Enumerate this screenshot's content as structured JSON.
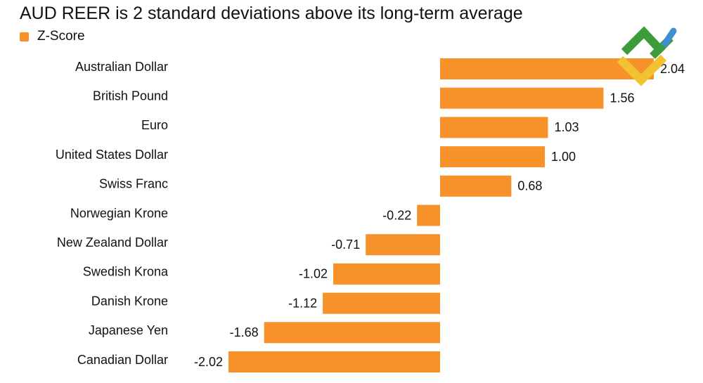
{
  "chart_data": {
    "type": "bar",
    "orientation": "horizontal",
    "title": "AUD REER is 2 standard deviations above its long-term average",
    "xlabel": "",
    "ylabel": "",
    "grid": false,
    "legend_position": "top-left",
    "categories": [
      "Australian Dollar",
      "British Pound",
      "Euro",
      "United States Dollar",
      "Swiss Franc",
      "Norwegian Krone",
      "New Zealand Dollar",
      "Swedish Krona",
      "Danish Krone",
      "Japanese Yen",
      "Canadian Dollar"
    ],
    "series": [
      {
        "name": "Z-Score",
        "values": [
          2.04,
          1.56,
          1.03,
          1.0,
          0.68,
          -0.22,
          -0.71,
          -1.02,
          -1.12,
          -1.68,
          -2.02
        ],
        "labels": [
          "2.04",
          "1.56",
          "1.03",
          "1.00",
          "0.68",
          "-0.22",
          "-0.71",
          "-1.02",
          "-1.12",
          "-1.68",
          "-2.02"
        ]
      }
    ],
    "xlim": [
      -2.02,
      2.04
    ]
  },
  "colors": {
    "bar": "#F7922A",
    "text": "#111111",
    "logo_green": "#3E9B3A",
    "logo_blue": "#3D8FD6",
    "logo_yellow": "#F2C230"
  },
  "logo": {
    "icon": "brand-logo-icon"
  }
}
